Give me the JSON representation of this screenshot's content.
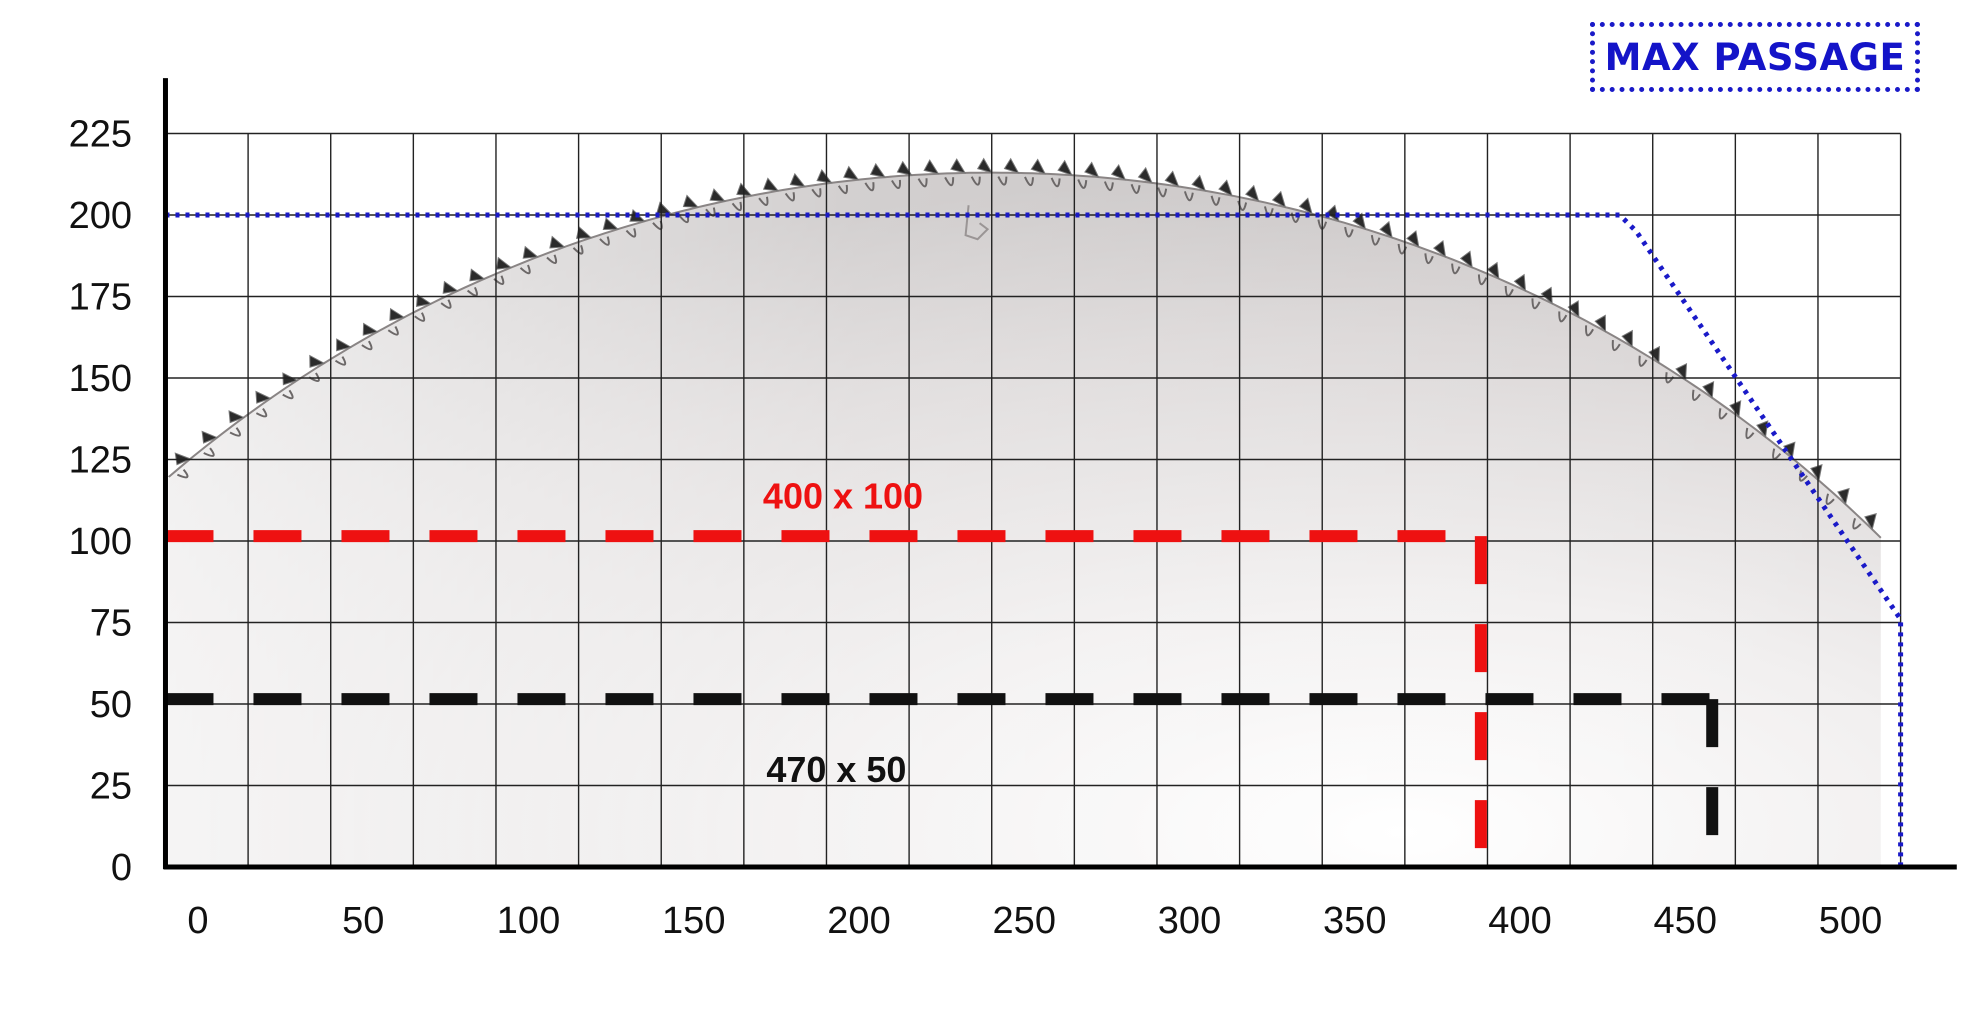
{
  "chart_data": {
    "type": "line",
    "title": "",
    "xlabel": "",
    "ylabel": "",
    "xlim": [
      0,
      530
    ],
    "ylim": [
      0,
      225
    ],
    "x_ticks": [
      "0",
      "50",
      "100",
      "150",
      "200",
      "250",
      "300",
      "350",
      "400",
      "450",
      "500"
    ],
    "y_ticks": [
      "0",
      "25",
      "50",
      "75",
      "100",
      "125",
      "150",
      "175",
      "200",
      "225"
    ],
    "grid": true,
    "legend": {
      "label": "MAX PASSAGE",
      "position": "top-right"
    },
    "series": [
      {
        "name": "MAX PASSAGE",
        "style": "dotted",
        "color": "#1a1ac8",
        "points": [
          [
            0,
            200
          ],
          [
            440,
            200
          ],
          [
            445,
            195
          ],
          [
            525,
            76
          ],
          [
            525,
            0
          ]
        ]
      }
    ],
    "cut_examples": [
      {
        "label": "400 x 100",
        "width": 400,
        "height": 100,
        "color": "#ee1111"
      },
      {
        "label": "470 x 50",
        "width": 470,
        "height": 50,
        "color": "#111111"
      }
    ],
    "blade": {
      "shape": "circular saw blade outline",
      "peak_x": 245,
      "peak_y": 213
    }
  }
}
